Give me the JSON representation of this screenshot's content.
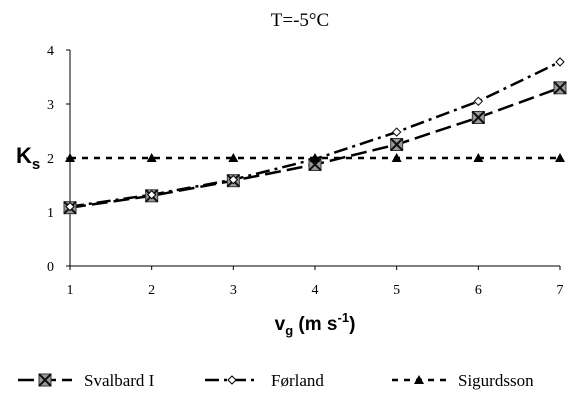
{
  "chart_data": {
    "type": "line",
    "title": "T=-5°C",
    "ylabel": "K",
    "ylabel_sub": "s",
    "xlabel": {
      "base": "v",
      "sub": "g",
      "rest": " (m s",
      "sup": "-1",
      "end": ")"
    },
    "x": [
      1,
      2,
      3,
      4,
      5,
      6,
      7
    ],
    "xlim": [
      1,
      7
    ],
    "ylim": [
      0,
      4
    ],
    "xticks": [
      "1",
      "2",
      "3",
      "4",
      "5",
      "6",
      "7"
    ],
    "yticks": [
      "0",
      "1",
      "2",
      "3",
      "4"
    ],
    "grid": false,
    "legend_position": "bottom",
    "series": [
      {
        "name": "Svalbard I",
        "values": [
          1.08,
          1.3,
          1.58,
          1.88,
          2.25,
          2.75,
          3.3
        ],
        "line_style": "long-dash",
        "marker": "crossed-square",
        "color": "#000000"
      },
      {
        "name": "Førland",
        "values": [
          1.1,
          1.32,
          1.6,
          1.98,
          2.48,
          3.05,
          3.78
        ],
        "line_style": "dash-dot",
        "marker": "open-diamond",
        "color": "#000000"
      },
      {
        "name": "Sigurdsson",
        "values": [
          2,
          2,
          2,
          2,
          2,
          2,
          2
        ],
        "line_style": "short-dash",
        "marker": "filled-triangle",
        "color": "#000000"
      }
    ]
  }
}
